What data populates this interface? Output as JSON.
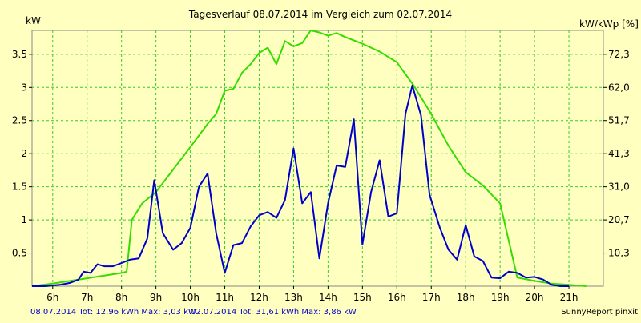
{
  "chart_data": {
    "type": "line",
    "title": "Tagesverlauf 08.07.2014 im Vergleich zum 02.07.2014",
    "ylabel_left": "kW",
    "ylabel_right": "kW/kWp [%]",
    "footer_right": "SunnyReport pinxit",
    "legend": [
      {
        "text": "08.07.2014 Tot: 12,96 kWh Max: 3,03 kW",
        "color": "#0000cc"
      },
      {
        "text": "02.07.2014 Tot: 31,61 kWh Max: 3,86 kW",
        "color": "#33dd00"
      }
    ],
    "xlim": [
      5.4,
      22.0
    ],
    "ylim": [
      0,
      3.86
    ],
    "grid": true,
    "x_ticks": [
      {
        "x": 6,
        "label": "6h"
      },
      {
        "x": 7,
        "label": "7h"
      },
      {
        "x": 8,
        "label": "8h"
      },
      {
        "x": 9,
        "label": "9h"
      },
      {
        "x": 10,
        "label": "10h"
      },
      {
        "x": 11,
        "label": "11h"
      },
      {
        "x": 12,
        "label": "12h"
      },
      {
        "x": 13,
        "label": "13h"
      },
      {
        "x": 14,
        "label": "14h"
      },
      {
        "x": 15,
        "label": "15h"
      },
      {
        "x": 16,
        "label": "16h"
      },
      {
        "x": 17,
        "label": "17h"
      },
      {
        "x": 18,
        "label": "18h"
      },
      {
        "x": 19,
        "label": "19h"
      },
      {
        "x": 20,
        "label": "20h"
      },
      {
        "x": 21,
        "label": "21h"
      }
    ],
    "y_ticks_left": [
      {
        "y": 0.5,
        "label": "0.5"
      },
      {
        "y": 1,
        "label": "1"
      },
      {
        "y": 1.5,
        "label": "1.5"
      },
      {
        "y": 2,
        "label": "2"
      },
      {
        "y": 2.5,
        "label": "2.5"
      },
      {
        "y": 3,
        "label": "3"
      },
      {
        "y": 3.5,
        "label": "3.5"
      }
    ],
    "y_ticks_right": [
      {
        "y": 0.5,
        "label": "10,3"
      },
      {
        "y": 1.0,
        "label": "20,7"
      },
      {
        "y": 1.5,
        "label": "31,0"
      },
      {
        "y": 2.0,
        "label": "41,3"
      },
      {
        "y": 2.5,
        "label": "51,7"
      },
      {
        "y": 3.0,
        "label": "62,0"
      },
      {
        "y": 3.5,
        "label": "72,3"
      }
    ],
    "series": [
      {
        "color": "#0000cc",
        "points": [
          [
            5.4,
            0.0
          ],
          [
            5.8,
            0.0
          ],
          [
            6.2,
            0.02
          ],
          [
            6.5,
            0.05
          ],
          [
            6.75,
            0.1
          ],
          [
            6.9,
            0.22
          ],
          [
            7.1,
            0.2
          ],
          [
            7.3,
            0.33
          ],
          [
            7.5,
            0.3
          ],
          [
            7.75,
            0.3
          ],
          [
            8.0,
            0.35
          ],
          [
            8.25,
            0.4
          ],
          [
            8.5,
            0.42
          ],
          [
            8.75,
            0.72
          ],
          [
            8.95,
            1.6
          ],
          [
            9.2,
            0.8
          ],
          [
            9.5,
            0.55
          ],
          [
            9.75,
            0.65
          ],
          [
            10.0,
            0.88
          ],
          [
            10.25,
            1.5
          ],
          [
            10.5,
            1.7
          ],
          [
            10.75,
            0.8
          ],
          [
            11.0,
            0.2
          ],
          [
            11.25,
            0.62
          ],
          [
            11.5,
            0.65
          ],
          [
            11.75,
            0.9
          ],
          [
            12.0,
            1.07
          ],
          [
            12.25,
            1.12
          ],
          [
            12.5,
            1.03
          ],
          [
            12.75,
            1.3
          ],
          [
            13.0,
            2.08
          ],
          [
            13.25,
            1.25
          ],
          [
            13.5,
            1.42
          ],
          [
            13.75,
            0.42
          ],
          [
            14.0,
            1.25
          ],
          [
            14.25,
            1.82
          ],
          [
            14.5,
            1.8
          ],
          [
            14.75,
            2.52
          ],
          [
            15.0,
            0.63
          ],
          [
            15.25,
            1.42
          ],
          [
            15.5,
            1.9
          ],
          [
            15.75,
            1.05
          ],
          [
            16.0,
            1.1
          ],
          [
            16.25,
            2.6
          ],
          [
            16.45,
            3.03
          ],
          [
            16.7,
            2.58
          ],
          [
            16.95,
            1.38
          ],
          [
            17.25,
            0.88
          ],
          [
            17.5,
            0.55
          ],
          [
            17.75,
            0.4
          ],
          [
            18.0,
            0.92
          ],
          [
            18.25,
            0.45
          ],
          [
            18.5,
            0.38
          ],
          [
            18.75,
            0.13
          ],
          [
            19.0,
            0.12
          ],
          [
            19.25,
            0.22
          ],
          [
            19.5,
            0.2
          ],
          [
            19.75,
            0.13
          ],
          [
            20.0,
            0.14
          ],
          [
            20.25,
            0.1
          ],
          [
            20.5,
            0.02
          ],
          [
            20.75,
            0.0
          ],
          [
            21.0,
            0.0
          ]
        ]
      },
      {
        "color": "#33dd00",
        "points": [
          [
            5.4,
            0.0
          ],
          [
            6.0,
            0.04
          ],
          [
            6.5,
            0.08
          ],
          [
            7.0,
            0.12
          ],
          [
            7.5,
            0.16
          ],
          [
            8.0,
            0.2
          ],
          [
            8.15,
            0.22
          ],
          [
            8.3,
            1.0
          ],
          [
            8.6,
            1.25
          ],
          [
            9.0,
            1.42
          ],
          [
            9.5,
            1.76
          ],
          [
            10.0,
            2.1
          ],
          [
            10.5,
            2.45
          ],
          [
            10.75,
            2.6
          ],
          [
            11.0,
            2.95
          ],
          [
            11.25,
            2.98
          ],
          [
            11.5,
            3.22
          ],
          [
            11.75,
            3.35
          ],
          [
            12.0,
            3.52
          ],
          [
            12.25,
            3.6
          ],
          [
            12.5,
            3.35
          ],
          [
            12.75,
            3.7
          ],
          [
            13.0,
            3.62
          ],
          [
            13.25,
            3.67
          ],
          [
            13.5,
            3.86
          ],
          [
            13.75,
            3.83
          ],
          [
            14.0,
            3.78
          ],
          [
            14.25,
            3.82
          ],
          [
            14.5,
            3.76
          ],
          [
            15.0,
            3.66
          ],
          [
            15.5,
            3.54
          ],
          [
            16.0,
            3.38
          ],
          [
            16.5,
            3.02
          ],
          [
            17.0,
            2.6
          ],
          [
            17.5,
            2.12
          ],
          [
            18.0,
            1.72
          ],
          [
            18.5,
            1.52
          ],
          [
            19.0,
            1.25
          ],
          [
            19.5,
            0.13
          ],
          [
            20.0,
            0.08
          ],
          [
            20.5,
            0.04
          ],
          [
            21.0,
            0.02
          ],
          [
            21.5,
            0.0
          ]
        ]
      }
    ]
  }
}
